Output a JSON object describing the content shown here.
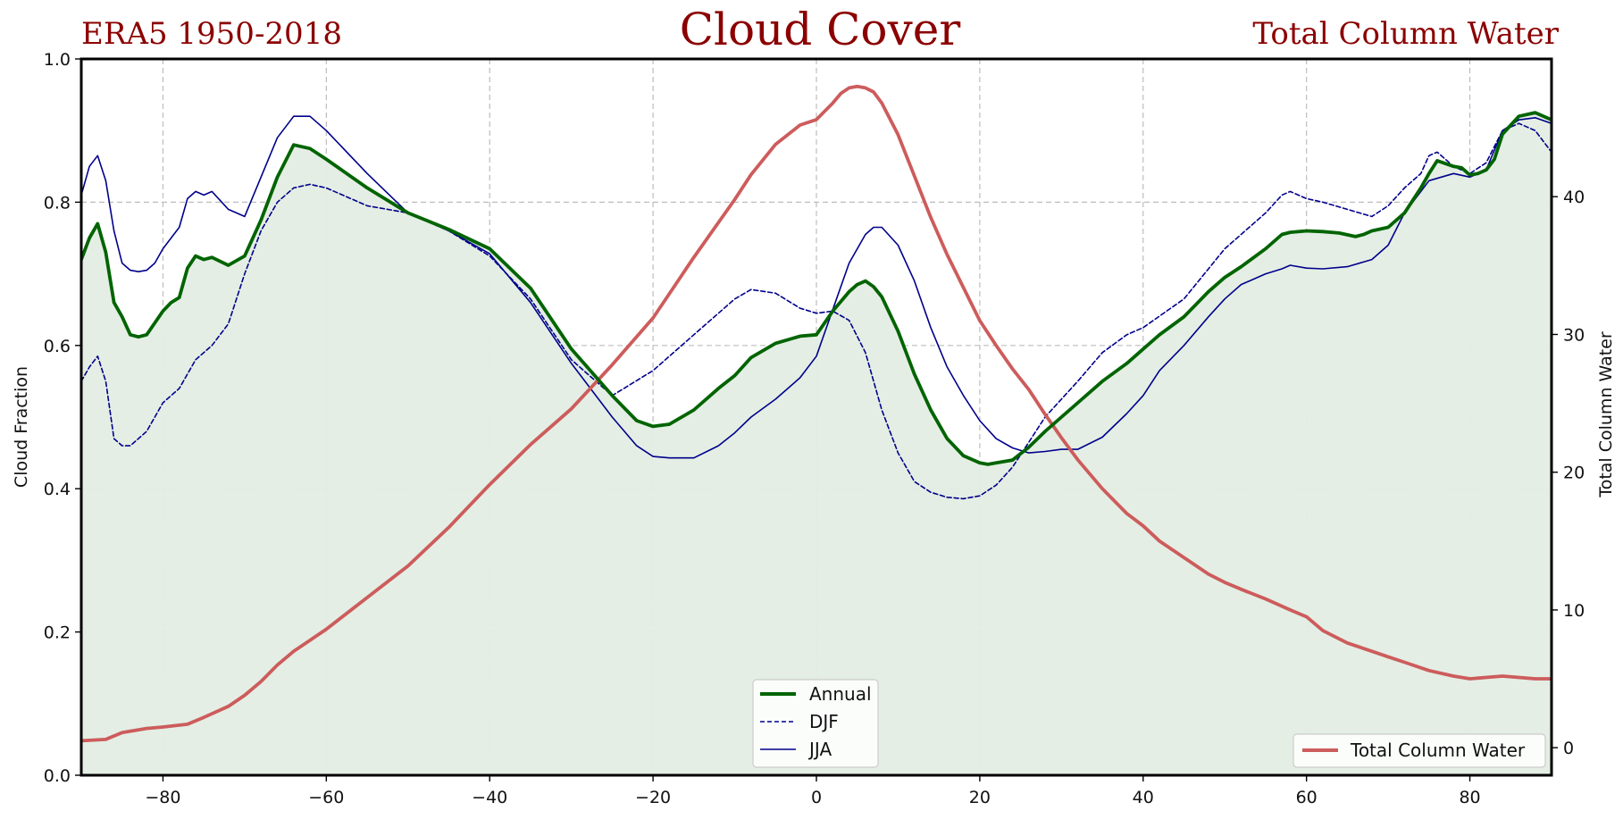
{
  "header": {
    "left": "ERA5 1950-2018",
    "center": "Cloud Cover",
    "right": "Total Column Water"
  },
  "chart_data": {
    "type": "line",
    "title": "Cloud Cover",
    "xlabel": "",
    "ylabel": "Cloud Fraction",
    "y2label": "Total Column Water",
    "xlim": [
      -90,
      90
    ],
    "ylim": [
      0,
      1
    ],
    "y2lim": [
      -2,
      50
    ],
    "grid": true,
    "legend_left": {
      "placement": "bottom-center",
      "entries": [
        "Annual",
        "DJF",
        "JJA"
      ]
    },
    "legend_right": {
      "placement": "bottom-right",
      "entries": [
        "Total Column Water"
      ]
    },
    "x_ticks": [
      -80,
      -60,
      -40,
      -20,
      0,
      20,
      40,
      60,
      80
    ],
    "y_ticks": [
      "0.0",
      "0.2",
      "0.4",
      "0.6",
      "0.8",
      "1.0"
    ],
    "y2_ticks": [
      "0",
      "10",
      "20",
      "30",
      "40"
    ],
    "colors": {
      "annual": "#006400",
      "djf": "#00008b",
      "jja": "#00008b",
      "tcw": "#cd5c5c",
      "fill": "#e3ede3"
    },
    "series": [
      {
        "name": "Annual",
        "axis": "left",
        "style": "solid-thick",
        "fill": true,
        "x": [
          -90,
          -89,
          -88,
          -87,
          -86,
          -85,
          -84,
          -83,
          -82,
          -80,
          -79,
          -78,
          -77,
          -76,
          -75,
          -74,
          -72,
          -70,
          -68,
          -66,
          -64,
          -62,
          -60,
          -55,
          -50,
          -45,
          -40,
          -35,
          -30,
          -25,
          -22,
          -20,
          -18,
          -15,
          -12,
          -10,
          -8,
          -5,
          -2,
          0,
          2,
          4,
          5,
          6,
          7,
          8,
          10,
          12,
          14,
          16,
          18,
          20,
          21,
          22,
          24,
          26,
          28,
          30,
          32,
          35,
          38,
          40,
          42,
          45,
          48,
          50,
          52,
          55,
          57,
          58,
          60,
          62,
          64,
          66,
          67,
          68,
          70,
          72,
          74,
          75,
          76,
          78,
          79,
          80,
          81,
          82,
          83,
          84,
          86,
          88,
          90
        ],
        "values": [
          0.72,
          0.75,
          0.77,
          0.73,
          0.66,
          0.64,
          0.615,
          0.612,
          0.615,
          0.648,
          0.66,
          0.667,
          0.708,
          0.725,
          0.72,
          0.723,
          0.712,
          0.725,
          0.775,
          0.835,
          0.88,
          0.875,
          0.86,
          0.82,
          0.785,
          0.762,
          0.735,
          0.68,
          0.595,
          0.53,
          0.495,
          0.487,
          0.49,
          0.51,
          0.54,
          0.558,
          0.583,
          0.603,
          0.613,
          0.615,
          0.648,
          0.675,
          0.685,
          0.69,
          0.682,
          0.668,
          0.62,
          0.56,
          0.51,
          0.47,
          0.446,
          0.436,
          0.434,
          0.436,
          0.44,
          0.458,
          0.48,
          0.5,
          0.52,
          0.55,
          0.575,
          0.595,
          0.615,
          0.64,
          0.675,
          0.695,
          0.71,
          0.735,
          0.755,
          0.758,
          0.76,
          0.759,
          0.757,
          0.752,
          0.755,
          0.76,
          0.765,
          0.785,
          0.82,
          0.84,
          0.858,
          0.85,
          0.848,
          0.838,
          0.84,
          0.845,
          0.86,
          0.895,
          0.92,
          0.925,
          0.915
        ]
      },
      {
        "name": "DJF",
        "axis": "left",
        "style": "dashed",
        "x": [
          -90,
          -89,
          -88,
          -87,
          -86,
          -85,
          -84,
          -82,
          -80,
          -78,
          -76,
          -74,
          -72,
          -70,
          -68,
          -66,
          -64,
          -62,
          -60,
          -55,
          -50,
          -45,
          -40,
          -35,
          -30,
          -25,
          -20,
          -15,
          -10,
          -8,
          -5,
          -2,
          0,
          2,
          4,
          6,
          8,
          10,
          12,
          14,
          16,
          18,
          20,
          22,
          24,
          26,
          28,
          30,
          32,
          35,
          38,
          40,
          45,
          50,
          55,
          57,
          58,
          60,
          62,
          65,
          68,
          70,
          72,
          74,
          75,
          76,
          78,
          80,
          82,
          84,
          86,
          88,
          90
        ],
        "values": [
          0.55,
          0.57,
          0.585,
          0.55,
          0.47,
          0.46,
          0.46,
          0.48,
          0.52,
          0.54,
          0.58,
          0.6,
          0.63,
          0.7,
          0.76,
          0.8,
          0.82,
          0.825,
          0.82,
          0.795,
          0.785,
          0.76,
          0.725,
          0.665,
          0.58,
          0.53,
          0.565,
          0.615,
          0.665,
          0.678,
          0.673,
          0.652,
          0.645,
          0.648,
          0.635,
          0.59,
          0.51,
          0.45,
          0.41,
          0.395,
          0.388,
          0.386,
          0.39,
          0.405,
          0.43,
          0.465,
          0.5,
          0.525,
          0.55,
          0.59,
          0.615,
          0.625,
          0.665,
          0.735,
          0.785,
          0.81,
          0.815,
          0.805,
          0.8,
          0.79,
          0.78,
          0.795,
          0.82,
          0.84,
          0.865,
          0.87,
          0.85,
          0.84,
          0.855,
          0.9,
          0.91,
          0.9,
          0.87
        ]
      },
      {
        "name": "JJA",
        "axis": "left",
        "style": "solid-thin",
        "x": [
          -90,
          -89,
          -88,
          -87,
          -86,
          -85,
          -84,
          -83,
          -82,
          -81,
          -80,
          -78,
          -77,
          -76,
          -75,
          -74,
          -72,
          -70,
          -68,
          -66,
          -64,
          -62,
          -60,
          -55,
          -50,
          -45,
          -40,
          -35,
          -30,
          -25,
          -22,
          -20,
          -18,
          -15,
          -12,
          -10,
          -8,
          -5,
          -2,
          0,
          2,
          4,
          6,
          7,
          8,
          10,
          12,
          14,
          16,
          18,
          20,
          22,
          24,
          26,
          28,
          30,
          32,
          35,
          38,
          40,
          42,
          45,
          48,
          50,
          52,
          55,
          57,
          58,
          60,
          62,
          65,
          68,
          70,
          72,
          74,
          75,
          78,
          80,
          82,
          84,
          86,
          88,
          90
        ],
        "values": [
          0.81,
          0.85,
          0.865,
          0.83,
          0.76,
          0.715,
          0.705,
          0.703,
          0.705,
          0.715,
          0.735,
          0.765,
          0.805,
          0.815,
          0.81,
          0.815,
          0.79,
          0.78,
          0.835,
          0.89,
          0.92,
          0.92,
          0.9,
          0.84,
          0.785,
          0.76,
          0.728,
          0.66,
          0.575,
          0.5,
          0.46,
          0.445,
          0.443,
          0.443,
          0.46,
          0.478,
          0.5,
          0.525,
          0.555,
          0.585,
          0.65,
          0.715,
          0.755,
          0.765,
          0.765,
          0.74,
          0.69,
          0.625,
          0.57,
          0.53,
          0.495,
          0.47,
          0.457,
          0.45,
          0.452,
          0.455,
          0.455,
          0.472,
          0.505,
          0.53,
          0.565,
          0.6,
          0.64,
          0.665,
          0.685,
          0.7,
          0.707,
          0.712,
          0.708,
          0.707,
          0.71,
          0.72,
          0.74,
          0.785,
          0.815,
          0.83,
          0.84,
          0.835,
          0.845,
          0.9,
          0.915,
          0.918,
          0.91
        ]
      },
      {
        "name": "Total Column Water",
        "axis": "right",
        "style": "solid-thick",
        "x": [
          -90,
          -87,
          -85,
          -82,
          -80,
          -77,
          -75,
          -72,
          -70,
          -68,
          -66,
          -64,
          -62,
          -60,
          -55,
          -50,
          -45,
          -40,
          -35,
          -30,
          -25,
          -20,
          -15,
          -10,
          -8,
          -5,
          -2,
          0,
          2,
          3,
          4,
          5,
          6,
          7,
          8,
          10,
          12,
          14,
          16,
          18,
          20,
          22,
          24,
          26,
          28,
          30,
          32,
          35,
          38,
          40,
          42,
          45,
          48,
          50,
          52,
          55,
          58,
          60,
          62,
          65,
          68,
          70,
          72,
          75,
          78,
          80,
          82,
          84,
          86,
          88,
          90
        ],
        "values": [
          0.5,
          0.6,
          1.1,
          1.4,
          1.5,
          1.7,
          2.2,
          3.0,
          3.8,
          4.8,
          6.0,
          7.0,
          7.8,
          8.6,
          10.9,
          13.2,
          16.0,
          19.1,
          22.0,
          24.6,
          27.8,
          31.2,
          35.6,
          39.8,
          41.6,
          43.8,
          45.2,
          45.6,
          46.8,
          47.5,
          47.9,
          48.0,
          47.9,
          47.6,
          46.8,
          44.5,
          41.5,
          38.5,
          35.8,
          33.4,
          31.0,
          29.2,
          27.5,
          26.0,
          24.2,
          22.5,
          20.9,
          18.8,
          17.0,
          16.1,
          15.0,
          13.8,
          12.6,
          12.0,
          11.5,
          10.8,
          10.0,
          9.5,
          8.5,
          7.6,
          7.0,
          6.6,
          6.2,
          5.6,
          5.2,
          5.0,
          5.1,
          5.2,
          5.1,
          5.0,
          5.0
        ]
      }
    ]
  }
}
